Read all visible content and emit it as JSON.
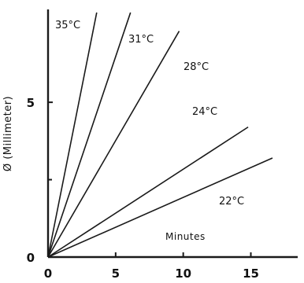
{
  "chart_data": {
    "type": "line",
    "xlabel": "Minutes",
    "ylabel": "Ø (Millimeter)",
    "xlim": [
      0,
      18
    ],
    "ylim": [
      0,
      8
    ],
    "x_ticks": [
      "0",
      "5",
      "10",
      "15"
    ],
    "y_ticks": [
      "0",
      "5"
    ],
    "x_tick_values": [
      0,
      5,
      10,
      15
    ],
    "y_tick_values": [
      0,
      5
    ],
    "grid": false,
    "legend": "none",
    "series": [
      {
        "name": "35°C",
        "x": [
          0,
          3.6
        ],
        "y": [
          0,
          7.9
        ]
      },
      {
        "name": "31°C",
        "x": [
          0,
          6.1
        ],
        "y": [
          0,
          7.9
        ]
      },
      {
        "name": "28°C",
        "x": [
          0,
          9.7
        ],
        "y": [
          0,
          7.3
        ]
      },
      {
        "name": "24°C",
        "x": [
          0,
          14.8
        ],
        "y": [
          0,
          4.2
        ]
      },
      {
        "name": "22°C",
        "x": [
          0,
          16.6
        ],
        "y": [
          0,
          3.2
        ]
      }
    ]
  }
}
